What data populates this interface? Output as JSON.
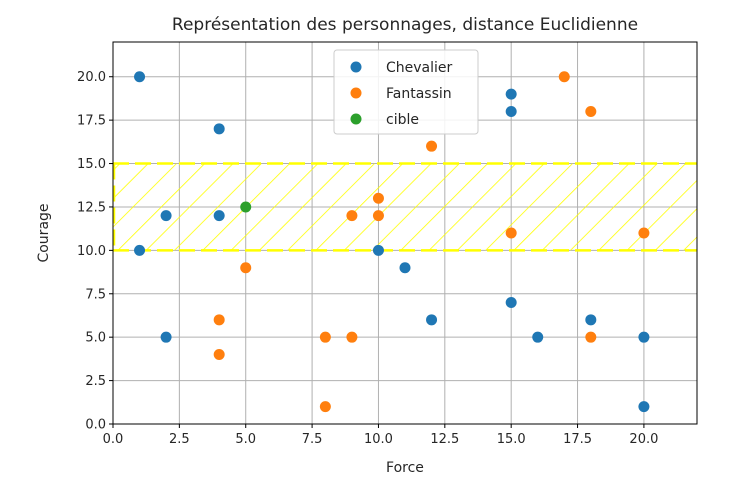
{
  "chart_data": {
    "type": "scatter",
    "title": "Représentation des personnages, distance Euclidienne",
    "xlabel": "Force",
    "ylabel": "Courage",
    "xlim": [
      0,
      22
    ],
    "ylim": [
      0,
      22
    ],
    "x_ticks": [
      "0.0",
      "2.5",
      "5.0",
      "7.5",
      "10.0",
      "12.5",
      "15.0",
      "17.5",
      "20.0"
    ],
    "y_ticks": [
      "0.0",
      "2.5",
      "5.0",
      "7.5",
      "10.0",
      "12.5",
      "15.0",
      "17.5",
      "20.0"
    ],
    "grid": true,
    "legend_position": "top-center",
    "series": [
      {
        "name": "Chevalier",
        "color": "#1f77b4",
        "points": [
          [
            1,
            20
          ],
          [
            1,
            10
          ],
          [
            2,
            12
          ],
          [
            2,
            5
          ],
          [
            4,
            17
          ],
          [
            4,
            12
          ],
          [
            10,
            10
          ],
          [
            11,
            9
          ],
          [
            12,
            6
          ],
          [
            15,
            19
          ],
          [
            15,
            18
          ],
          [
            15,
            7
          ],
          [
            16,
            5
          ],
          [
            18,
            6
          ],
          [
            20,
            5
          ],
          [
            20,
            1
          ]
        ]
      },
      {
        "name": "Fantassin",
        "color": "#ff7f0e",
        "points": [
          [
            4,
            6
          ],
          [
            4,
            4
          ],
          [
            5,
            9
          ],
          [
            8,
            5
          ],
          [
            8,
            1
          ],
          [
            9,
            12
          ],
          [
            9,
            5
          ],
          [
            10,
            13
          ],
          [
            10,
            12
          ],
          [
            12,
            16
          ],
          [
            15,
            11
          ],
          [
            17,
            20
          ],
          [
            18,
            18
          ],
          [
            18,
            5
          ],
          [
            20,
            11
          ]
        ]
      },
      {
        "name": "cible",
        "color": "#2ca02c",
        "points": [
          [
            5,
            12.5
          ]
        ]
      }
    ],
    "band": {
      "y_from": 10,
      "y_to": 15,
      "color": "#ffff00",
      "style": "dashed-hatched"
    }
  }
}
